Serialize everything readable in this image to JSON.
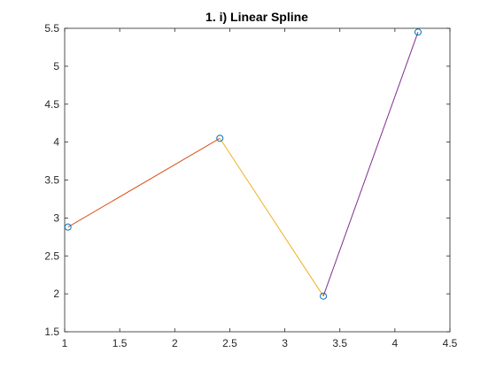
{
  "chart_data": {
    "type": "line",
    "title": "1. i) Linear Spline",
    "xlabel": "",
    "ylabel": "",
    "xlim": [
      1,
      4.5
    ],
    "ylim": [
      1.5,
      5.5
    ],
    "x_ticks": [
      1,
      1.5,
      2,
      2.5,
      3,
      3.5,
      4,
      4.5
    ],
    "x_tick_labels": [
      "1",
      "1.5",
      "2",
      "2.5",
      "3",
      "3.5",
      "4",
      "4.5"
    ],
    "y_ticks": [
      1.5,
      2,
      2.5,
      3,
      3.5,
      4,
      4.5,
      5,
      5.5
    ],
    "y_tick_labels": [
      "1.5",
      "2",
      "2.5",
      "3",
      "3.5",
      "4",
      "4.5",
      "5",
      "5.5"
    ],
    "grid": false,
    "points": {
      "x": [
        1.03,
        2.41,
        3.35,
        4.21
      ],
      "y": [
        2.88,
        4.05,
        1.97,
        5.45
      ],
      "marker": "circle",
      "color": "#0072BD"
    },
    "series": [
      {
        "x": [
          1.03,
          2.41
        ],
        "y": [
          2.88,
          4.05
        ],
        "color": "#D95319"
      },
      {
        "x": [
          2.41,
          3.35
        ],
        "y": [
          4.05,
          1.97
        ],
        "color": "#EDB120"
      },
      {
        "x": [
          3.35,
          4.21
        ],
        "y": [
          1.97,
          5.45
        ],
        "color": "#7E2F8E"
      }
    ]
  }
}
